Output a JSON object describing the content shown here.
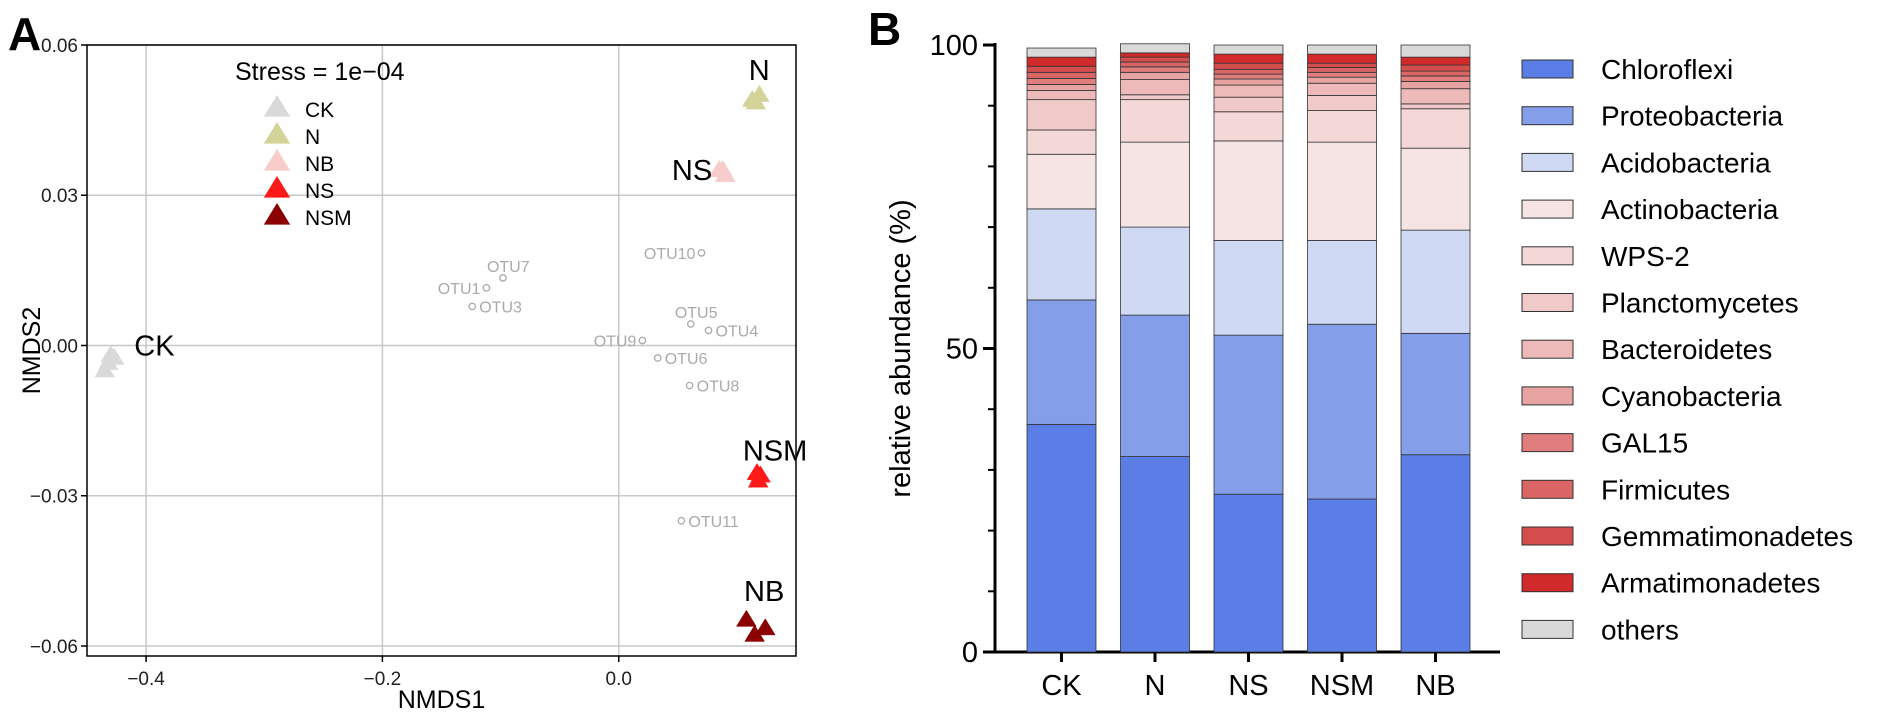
{
  "panel_a_label": "A",
  "panel_b_label": "B",
  "chart_data": [
    {
      "type": "scatter",
      "panel": "A",
      "xlabel": "NMDS1",
      "ylabel": "NMDS2",
      "xlim": [
        -0.45,
        0.15
      ],
      "ylim": [
        -0.062,
        0.06
      ],
      "xticks": [
        -0.4,
        -0.2,
        0.0
      ],
      "xtick_labels": [
        "−0.4",
        "−0.2",
        "0.0"
      ],
      "yticks": [
        -0.06,
        -0.03,
        0.0,
        0.03,
        0.06
      ],
      "ytick_labels": [
        "−0.06",
        "−0.03",
        "0.00",
        "0.03",
        "0.06"
      ],
      "grid": true,
      "annotation": "Stress = 1e−04",
      "legend": [
        {
          "label": "CK",
          "color": "#d9d9d9"
        },
        {
          "label": "N",
          "color": "#d4d49a"
        },
        {
          "label": "NB",
          "color": "#f9cccc"
        },
        {
          "label": "NS",
          "color": "#ff1a1a"
        },
        {
          "label": "NSM",
          "color": "#8b0000"
        }
      ],
      "sample_groups": [
        {
          "label": "CK",
          "color": "#d9d9d9",
          "label_anchor": {
            "x": -0.41,
            "y": 0.0
          },
          "points": [
            [
              -0.432,
              -0.0035
            ],
            [
              -0.427,
              -0.0025
            ],
            [
              -0.435,
              -0.005
            ],
            [
              -0.43,
              -0.002
            ]
          ]
        },
        {
          "label": "N",
          "color": "#d4d49a",
          "label_anchor": {
            "x": 0.11,
            "y": 0.055
          },
          "points": [
            [
              0.113,
              0.049
            ],
            [
              0.119,
              0.05
            ],
            [
              0.116,
              0.0485
            ]
          ]
        },
        {
          "label": "NS",
          "color": "#f9cccc",
          "label_anchor": {
            "x": 0.045,
            "y": 0.035
          },
          "points": [
            [
              0.085,
              0.035
            ],
            [
              0.09,
              0.034
            ],
            [
              0.088,
              0.035
            ]
          ]
        },
        {
          "label": "NSM",
          "color": "#ff1a1a",
          "label_anchor": {
            "x": 0.105,
            "y": -0.021
          },
          "points": [
            [
              0.117,
              -0.0255
            ],
            [
              0.12,
              -0.026
            ],
            [
              0.118,
              -0.027
            ]
          ]
        },
        {
          "label": "NB",
          "color": "#8b0000",
          "label_anchor": {
            "x": 0.106,
            "y": -0.049
          },
          "points": [
            [
              0.108,
              -0.0548
            ],
            [
              0.124,
              -0.0565
            ],
            [
              0.115,
              -0.0578
            ]
          ]
        }
      ],
      "otus": [
        {
          "label": "OTU1",
          "x": -0.112,
          "y": 0.0115
        },
        {
          "label": "OTU7",
          "x": -0.098,
          "y": 0.0135
        },
        {
          "label": "OTU3",
          "x": -0.124,
          "y": 0.0078
        },
        {
          "label": "OTU10",
          "x": 0.07,
          "y": 0.0185
        },
        {
          "label": "OTU5",
          "x": 0.061,
          "y": 0.0043
        },
        {
          "label": "OTU4",
          "x": 0.076,
          "y": 0.003
        },
        {
          "label": "OTU9",
          "x": 0.02,
          "y": 0.001
        },
        {
          "label": "OTU6",
          "x": 0.033,
          "y": -0.0025
        },
        {
          "label": "OTU8",
          "x": 0.06,
          "y": -0.008
        },
        {
          "label": "OTU11",
          "x": 0.053,
          "y": -0.035
        }
      ]
    },
    {
      "type": "bar",
      "stacked": true,
      "panel": "B",
      "xlabel": "",
      "ylabel": "relative abundance (%)",
      "ylim": [
        0,
        100
      ],
      "yticks": [
        0,
        50,
        100
      ],
      "categories": [
        "CK",
        "N",
        "NS",
        "NSM",
        "NB"
      ],
      "series": [
        {
          "name": "Chloroflexi",
          "color": "#5b7de6",
          "values": [
            37.5,
            32.2,
            26.0,
            25.2,
            32.5
          ]
        },
        {
          "name": "Proteobacteria",
          "color": "#849eea",
          "values": [
            20.5,
            23.3,
            26.2,
            28.8,
            20.0
          ]
        },
        {
          "name": "Acidobacteria",
          "color": "#cfd9f3",
          "values": [
            15.0,
            14.5,
            15.6,
            13.8,
            17.0
          ]
        },
        {
          "name": "Actinobacteria",
          "color": "#f6e4e4",
          "values": [
            9.0,
            14.0,
            16.4,
            16.2,
            13.5
          ]
        },
        {
          "name": "WPS-2",
          "color": "#f4d7d7",
          "values": [
            4.0,
            7.0,
            4.8,
            5.2,
            6.5
          ]
        },
        {
          "name": "Planctomycetes",
          "color": "#f0c9c9",
          "values": [
            5.0,
            0.8,
            2.4,
            2.5,
            0.8
          ]
        },
        {
          "name": "Bacteroidetes",
          "color": "#edb9b9",
          "values": [
            1.5,
            2.5,
            2.0,
            2.0,
            2.5
          ]
        },
        {
          "name": "Cyanobacteria",
          "color": "#e7a2a2",
          "values": [
            1.0,
            1.2,
            1.0,
            1.0,
            1.2
          ]
        },
        {
          "name": "GAL15",
          "color": "#e07d7d",
          "values": [
            1.0,
            0.9,
            0.8,
            0.8,
            0.9
          ]
        },
        {
          "name": "Firmicutes",
          "color": "#d96565",
          "values": [
            1.0,
            0.8,
            0.8,
            0.8,
            0.8
          ]
        },
        {
          "name": "Gemmatimonadetes",
          "color": "#d44d4d",
          "values": [
            1.0,
            0.8,
            1.0,
            0.7,
            1.0
          ]
        },
        {
          "name": "Armatimonadetes",
          "color": "#d12a2a",
          "values": [
            1.5,
            0.7,
            1.5,
            1.5,
            1.3
          ]
        },
        {
          "name": "others",
          "color": "#d9d9d9",
          "values": [
            1.5,
            1.5,
            1.5,
            1.5,
            2.0
          ]
        }
      ]
    }
  ]
}
